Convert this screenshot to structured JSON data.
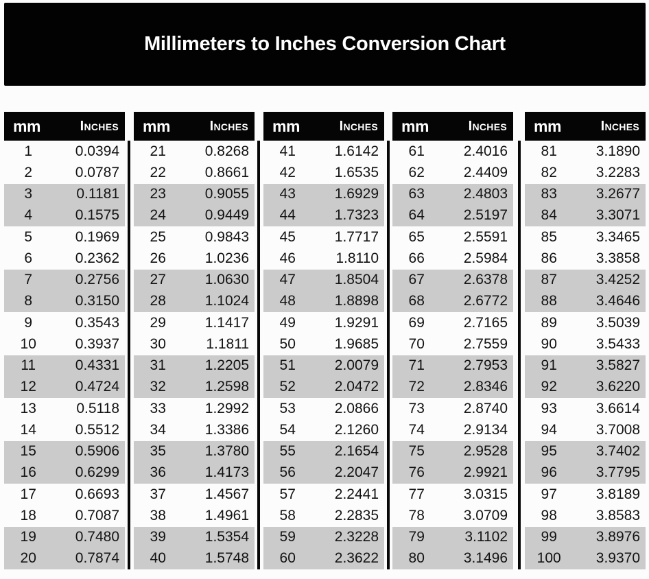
{
  "title": "Millimeters to Inches Conversion Chart",
  "column_headers": {
    "mm": "mm",
    "inches": "Inches"
  },
  "colors": {
    "banner_bg": "#000000",
    "banner_text": "#ffffff",
    "table_header_bg": "#000000",
    "table_header_text": "#ffffff",
    "row_bg": "#fcfcfc",
    "row_alt_bg": "#cbcbcb",
    "row_text": "#131313",
    "divider": "#000000"
  },
  "chart_data": {
    "type": "table",
    "title": "Millimeters to Inches Conversion Chart",
    "columns": [
      "mm",
      "Inches"
    ],
    "layout": "5 side-by-side sub-tables of 20 rows each; rows shaded gray in alternating pairs (rows 3-4, 7-8, 11-12, 15-16, 19-20 of each sub-table)",
    "rows": [
      [
        1,
        "0.0394"
      ],
      [
        2,
        "0.0787"
      ],
      [
        3,
        "0.1181"
      ],
      [
        4,
        "0.1575"
      ],
      [
        5,
        "0.1969"
      ],
      [
        6,
        "0.2362"
      ],
      [
        7,
        "0.2756"
      ],
      [
        8,
        "0.3150"
      ],
      [
        9,
        "0.3543"
      ],
      [
        10,
        "0.3937"
      ],
      [
        11,
        "0.4331"
      ],
      [
        12,
        "0.4724"
      ],
      [
        13,
        "0.5118"
      ],
      [
        14,
        "0.5512"
      ],
      [
        15,
        "0.5906"
      ],
      [
        16,
        "0.6299"
      ],
      [
        17,
        "0.6693"
      ],
      [
        18,
        "0.7087"
      ],
      [
        19,
        "0.7480"
      ],
      [
        20,
        "0.7874"
      ],
      [
        21,
        "0.8268"
      ],
      [
        22,
        "0.8661"
      ],
      [
        23,
        "0.9055"
      ],
      [
        24,
        "0.9449"
      ],
      [
        25,
        "0.9843"
      ],
      [
        26,
        "1.0236"
      ],
      [
        27,
        "1.0630"
      ],
      [
        28,
        "1.1024"
      ],
      [
        29,
        "1.1417"
      ],
      [
        30,
        "1.1811"
      ],
      [
        31,
        "1.2205"
      ],
      [
        32,
        "1.2598"
      ],
      [
        33,
        "1.2992"
      ],
      [
        34,
        "1.3386"
      ],
      [
        35,
        "1.3780"
      ],
      [
        36,
        "1.4173"
      ],
      [
        37,
        "1.4567"
      ],
      [
        38,
        "1.4961"
      ],
      [
        39,
        "1.5354"
      ],
      [
        40,
        "1.5748"
      ],
      [
        41,
        "1.6142"
      ],
      [
        42,
        "1.6535"
      ],
      [
        43,
        "1.6929"
      ],
      [
        44,
        "1.7323"
      ],
      [
        45,
        "1.7717"
      ],
      [
        46,
        "1.8110"
      ],
      [
        47,
        "1.8504"
      ],
      [
        48,
        "1.8898"
      ],
      [
        49,
        "1.9291"
      ],
      [
        50,
        "1.9685"
      ],
      [
        51,
        "2.0079"
      ],
      [
        52,
        "2.0472"
      ],
      [
        53,
        "2.0866"
      ],
      [
        54,
        "2.1260"
      ],
      [
        55,
        "2.1654"
      ],
      [
        56,
        "2.2047"
      ],
      [
        57,
        "2.2441"
      ],
      [
        58,
        "2.2835"
      ],
      [
        59,
        "2.3228"
      ],
      [
        60,
        "2.3622"
      ],
      [
        61,
        "2.4016"
      ],
      [
        62,
        "2.4409"
      ],
      [
        63,
        "2.4803"
      ],
      [
        64,
        "2.5197"
      ],
      [
        65,
        "2.5591"
      ],
      [
        66,
        "2.5984"
      ],
      [
        67,
        "2.6378"
      ],
      [
        68,
        "2.6772"
      ],
      [
        69,
        "2.7165"
      ],
      [
        70,
        "2.7559"
      ],
      [
        71,
        "2.7953"
      ],
      [
        72,
        "2.8346"
      ],
      [
        73,
        "2.8740"
      ],
      [
        74,
        "2.9134"
      ],
      [
        75,
        "2.9528"
      ],
      [
        76,
        "2.9921"
      ],
      [
        77,
        "3.0315"
      ],
      [
        78,
        "3.0709"
      ],
      [
        79,
        "3.1102"
      ],
      [
        80,
        "3.1496"
      ],
      [
        81,
        "3.1890"
      ],
      [
        82,
        "3.2283"
      ],
      [
        83,
        "3.2677"
      ],
      [
        84,
        "3.3071"
      ],
      [
        85,
        "3.3465"
      ],
      [
        86,
        "3.3858"
      ],
      [
        87,
        "3.4252"
      ],
      [
        88,
        "3.4646"
      ],
      [
        89,
        "3.5039"
      ],
      [
        90,
        "3.5433"
      ],
      [
        91,
        "3.5827"
      ],
      [
        92,
        "3.6220"
      ],
      [
        93,
        "3.6614"
      ],
      [
        94,
        "3.7008"
      ],
      [
        95,
        "3.7402"
      ],
      [
        96,
        "3.7795"
      ],
      [
        97,
        "3.8189"
      ],
      [
        98,
        "3.8583"
      ],
      [
        99,
        "3.8976"
      ],
      [
        100,
        "3.9370"
      ]
    ]
  }
}
